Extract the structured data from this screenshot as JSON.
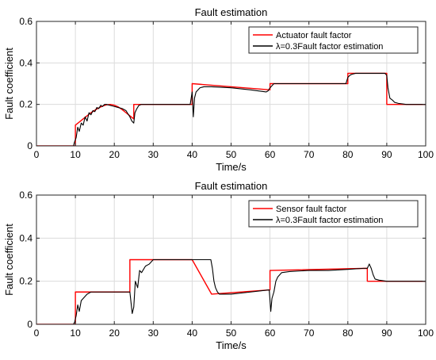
{
  "chart_data": [
    {
      "type": "line",
      "title": "Fault estimation",
      "xlabel": "Time/s",
      "ylabel": "Fault coefficient",
      "xlim": [
        0,
        100
      ],
      "ylim": [
        0,
        0.6
      ],
      "xticks": [
        0,
        10,
        20,
        30,
        40,
        50,
        60,
        70,
        80,
        90,
        100
      ],
      "xtick_labels": [
        "0",
        "10",
        "20",
        "30",
        "40",
        "50",
        "60",
        "70",
        "80",
        "90",
        "100"
      ],
      "yticks": [
        0,
        0.2,
        0.4,
        0.6
      ],
      "ytick_labels": [
        "0",
        "0.2",
        "0.4",
        "0.6"
      ],
      "grid": true,
      "legend_position": "top-right",
      "series": [
        {
          "name": "Actuator fault factor",
          "color": "#ff0000",
          "x": [
            0,
            10,
            10,
            11,
            12,
            13,
            14,
            15,
            16,
            17,
            18,
            19,
            20,
            21,
            22,
            23,
            24,
            25,
            25,
            40,
            40,
            60,
            60,
            80,
            80,
            90,
            90,
            100
          ],
          "y": [
            0,
            0,
            0.1,
            0.115,
            0.13,
            0.145,
            0.16,
            0.172,
            0.183,
            0.192,
            0.198,
            0.2,
            0.196,
            0.188,
            0.175,
            0.16,
            0.145,
            0.13,
            0.2,
            0.2,
            0.3,
            0.27,
            0.3,
            0.3,
            0.35,
            0.35,
            0.2,
            0.2
          ]
        },
        {
          "name": "λ=0.3Fault factor estimation",
          "color": "#000000",
          "x": [
            0,
            9.5,
            9.8,
            10.2,
            10.6,
            11,
            11.5,
            12,
            12.5,
            13,
            13.5,
            14,
            14.5,
            15,
            15.5,
            16,
            16.5,
            17,
            17.5,
            18,
            19,
            20,
            21,
            22,
            23,
            24,
            24.5,
            25,
            25.3,
            25.8,
            26.3,
            27,
            28,
            30,
            35,
            39.5,
            40,
            40.3,
            40.6,
            41,
            41.5,
            42,
            43,
            45,
            50,
            55,
            59,
            59.5,
            60,
            60.5,
            61,
            62,
            65,
            70,
            75,
            79.5,
            80,
            80.5,
            81,
            82,
            85,
            89,
            89.5,
            90,
            90.3,
            90.8,
            91.5,
            92,
            93,
            95,
            100
          ],
          "y": [
            0,
            0,
            0.02,
            0.04,
            0.09,
            0.07,
            0.11,
            0.1,
            0.14,
            0.12,
            0.16,
            0.15,
            0.17,
            0.165,
            0.185,
            0.18,
            0.195,
            0.19,
            0.2,
            0.2,
            0.195,
            0.19,
            0.185,
            0.18,
            0.17,
            0.14,
            0.12,
            0.11,
            0.16,
            0.18,
            0.195,
            0.2,
            0.2,
            0.2,
            0.2,
            0.2,
            0.26,
            0.14,
            0.23,
            0.26,
            0.27,
            0.28,
            0.285,
            0.285,
            0.28,
            0.27,
            0.26,
            0.265,
            0.28,
            0.29,
            0.3,
            0.3,
            0.3,
            0.3,
            0.3,
            0.3,
            0.33,
            0.34,
            0.345,
            0.35,
            0.35,
            0.35,
            0.35,
            0.34,
            0.28,
            0.23,
            0.22,
            0.21,
            0.205,
            0.2,
            0.2
          ]
        }
      ]
    },
    {
      "type": "line",
      "title": "Fault estimation",
      "xlabel": "Time/s",
      "ylabel": "Fault coefficient",
      "xlim": [
        0,
        100
      ],
      "ylim": [
        0,
        0.6
      ],
      "xticks": [
        0,
        10,
        20,
        30,
        40,
        50,
        60,
        70,
        80,
        90,
        100
      ],
      "xtick_labels": [
        "0",
        "10",
        "20",
        "30",
        "40",
        "50",
        "60",
        "70",
        "80",
        "90",
        "100"
      ],
      "yticks": [
        0,
        0.2,
        0.4,
        0.6
      ],
      "ytick_labels": [
        "0",
        "0.2",
        "0.4",
        "0.6"
      ],
      "grid": true,
      "legend_position": "top-right",
      "series": [
        {
          "name": "Sensor fault factor",
          "color": "#ff0000",
          "x": [
            0,
            10,
            10,
            24,
            24,
            40,
            40,
            45,
            45,
            60,
            60,
            85,
            85,
            100
          ],
          "y": [
            0,
            0,
            0.15,
            0.15,
            0.3,
            0.3,
            0.3,
            0.14,
            0.14,
            0.16,
            0.25,
            0.26,
            0.2,
            0.2
          ]
        },
        {
          "name": "λ=0.3Fault factor estimation",
          "color": "#000000",
          "x": [
            0,
            9.5,
            9.8,
            10.2,
            10.6,
            11,
            11.5,
            12,
            13,
            14,
            16,
            20,
            24,
            24.6,
            25,
            25.4,
            26,
            26.5,
            27,
            28,
            29,
            30,
            35,
            40,
            44.8,
            45.2,
            45.6,
            46,
            46.5,
            47,
            48,
            50,
            55,
            59.8,
            60.2,
            60.5,
            61,
            61.5,
            62,
            63,
            65,
            70,
            75,
            80,
            84,
            85,
            85.5,
            86,
            86.5,
            87,
            88,
            90,
            95,
            100
          ],
          "y": [
            0,
            0,
            0.01,
            0.04,
            0.09,
            0.06,
            0.11,
            0.12,
            0.14,
            0.15,
            0.15,
            0.15,
            0.15,
            0.05,
            0.08,
            0.2,
            0.17,
            0.25,
            0.24,
            0.27,
            0.28,
            0.3,
            0.3,
            0.3,
            0.3,
            0.26,
            0.2,
            0.17,
            0.15,
            0.14,
            0.14,
            0.14,
            0.15,
            0.16,
            0.06,
            0.12,
            0.15,
            0.2,
            0.22,
            0.24,
            0.245,
            0.25,
            0.25,
            0.255,
            0.26,
            0.26,
            0.28,
            0.26,
            0.23,
            0.21,
            0.205,
            0.2,
            0.2,
            0.2
          ]
        }
      ]
    }
  ]
}
